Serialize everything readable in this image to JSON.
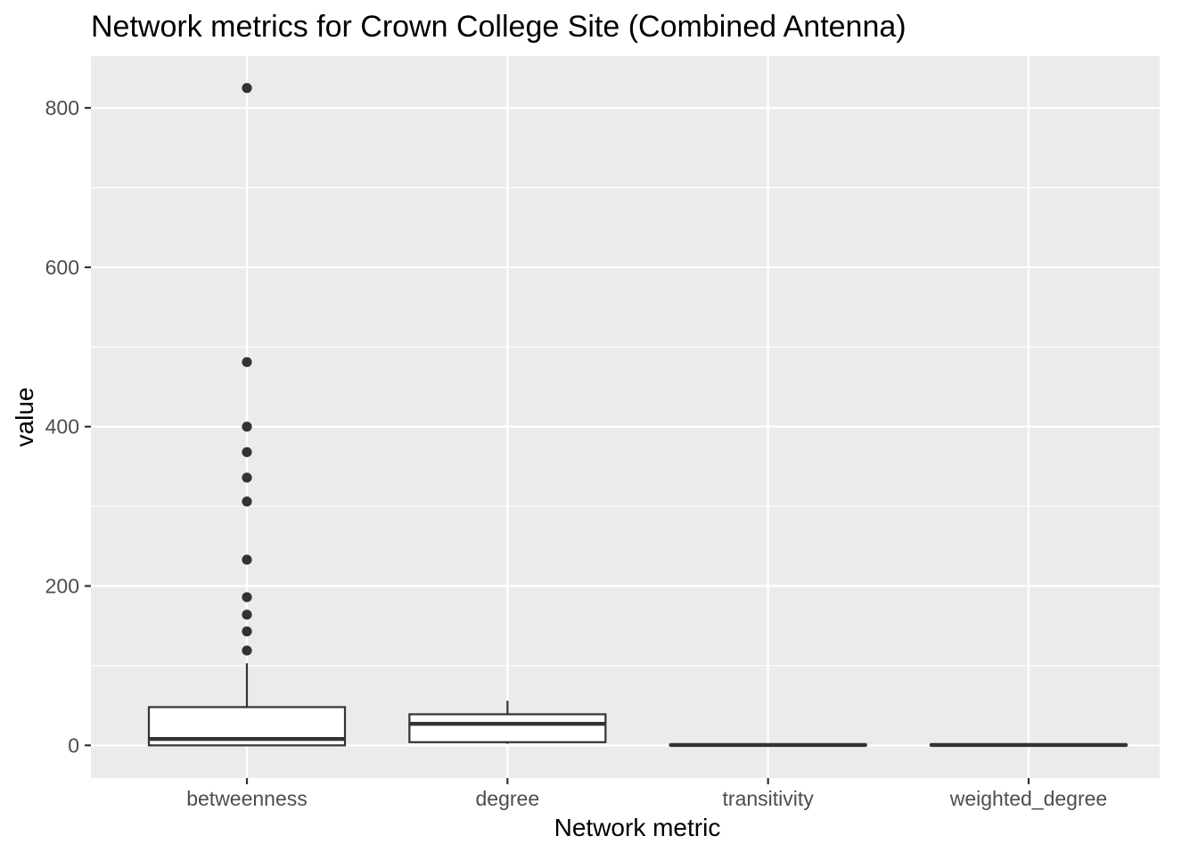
{
  "chart_data": {
    "type": "boxplot",
    "title": "Network metrics for Crown College Site (Combined Antenna)",
    "xlabel": "Network metric",
    "ylabel": "value",
    "categories": [
      "betweenness",
      "degree",
      "transitivity",
      "weighted_degree"
    ],
    "ylim": [
      -41,
      865
    ],
    "yticks": [
      0,
      200,
      400,
      600,
      800
    ],
    "grid": true,
    "legend": "none",
    "boxes": [
      {
        "category": "betweenness",
        "lower_whisker": 0,
        "q1": 0,
        "median": 8,
        "q3": 48,
        "upper_whisker": 103,
        "outliers": [
          825,
          481,
          400,
          368,
          336,
          306,
          233,
          186,
          164,
          143,
          119
        ]
      },
      {
        "category": "degree",
        "lower_whisker": 2,
        "q1": 4,
        "median": 27,
        "q3": 39,
        "upper_whisker": 56,
        "outliers": []
      },
      {
        "category": "transitivity",
        "lower_whisker": 0,
        "q1": 0,
        "median": 0.5,
        "q3": 1,
        "upper_whisker": 1,
        "outliers": []
      },
      {
        "category": "weighted_degree",
        "lower_whisker": 0,
        "q1": 0,
        "median": 0.5,
        "q3": 1,
        "upper_whisker": 1,
        "outliers": []
      }
    ],
    "colors": {
      "panel": "#ebebeb",
      "grid": "#ffffff",
      "box_fill": "#ffffff",
      "box_line": "#333333",
      "tick_text": "#4d4d4d",
      "title_text": "#000000"
    }
  }
}
